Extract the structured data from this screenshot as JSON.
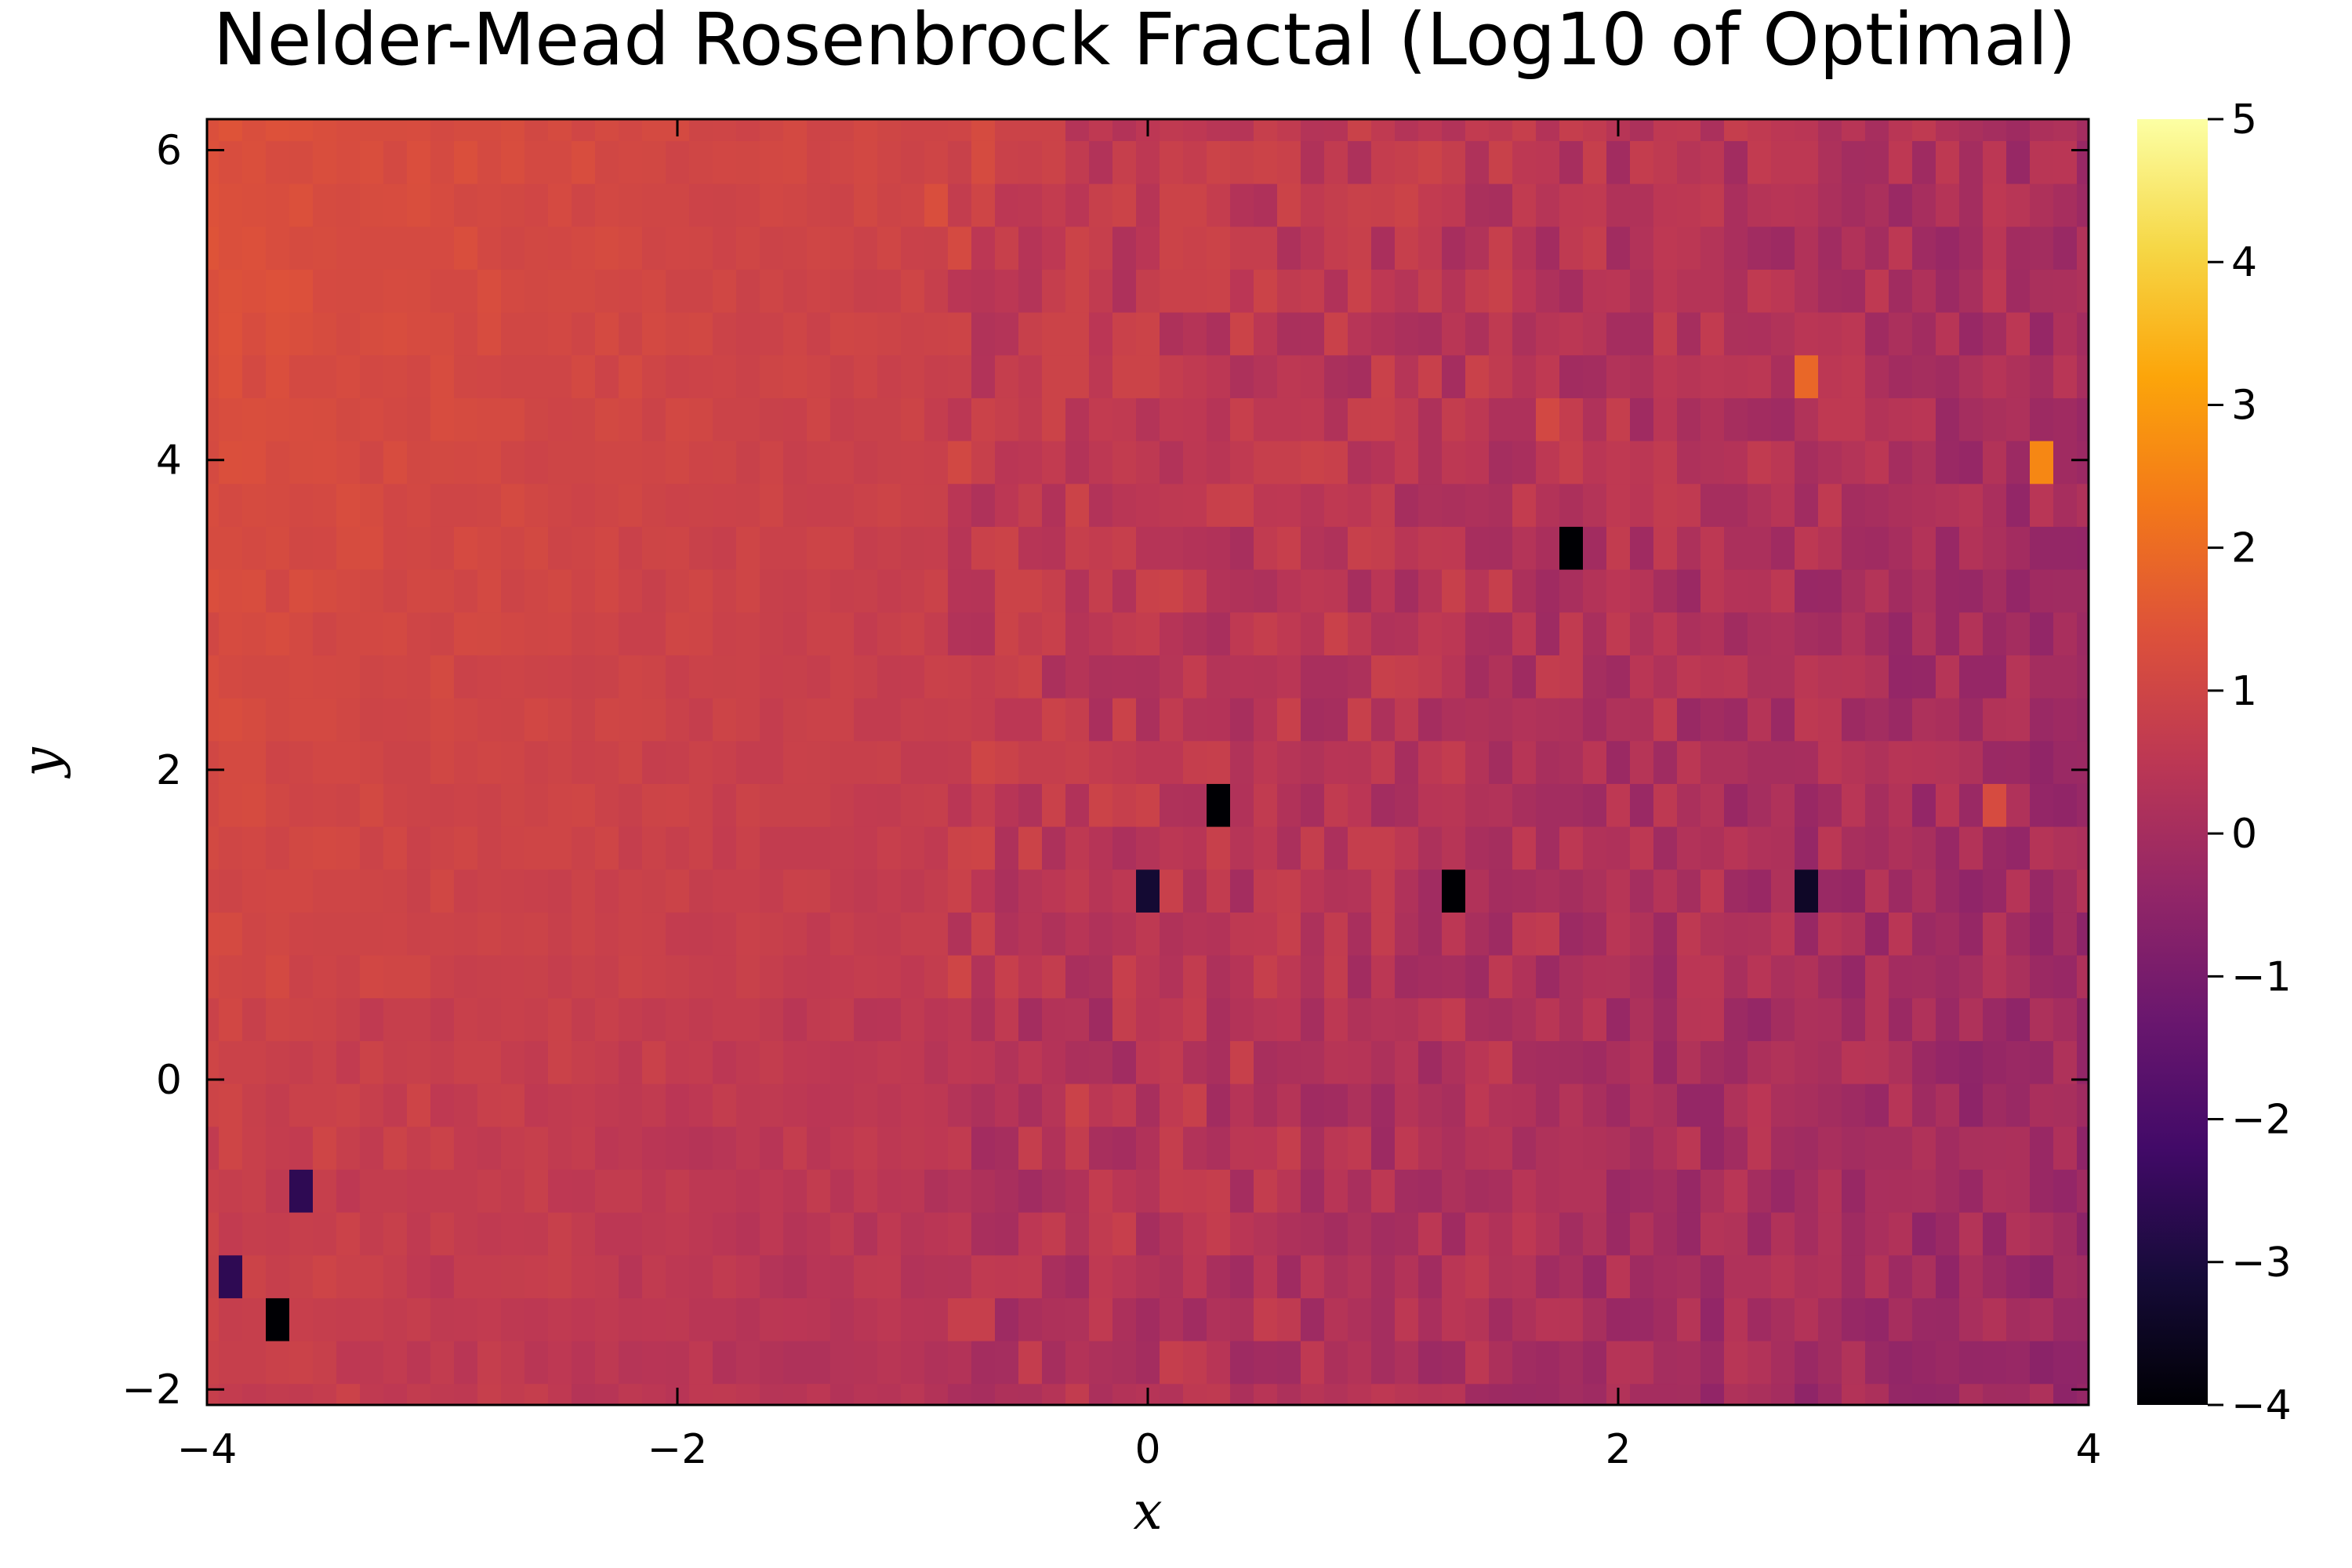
{
  "chart_data": {
    "type": "heatmap",
    "title": "Nelder-Mead Rosenbrock Fractal (Log10 of Optimal)",
    "xlabel": "x",
    "ylabel": "y",
    "xlim": [
      -4,
      4
    ],
    "ylim": [
      -2,
      6.2
    ],
    "x_ticks": [
      -4,
      -2,
      0,
      2,
      4
    ],
    "y_ticks": [
      -2,
      0,
      2,
      4,
      6
    ],
    "x_tick_labels": [
      "−4",
      "−2",
      "0",
      "2",
      "4"
    ],
    "y_tick_labels": [
      "−2",
      "0",
      "2",
      "4",
      "6"
    ],
    "colorbar": {
      "min": -4,
      "max": 5,
      "ticks": [
        -4,
        -3,
        -2,
        -1,
        0,
        1,
        2,
        3,
        4,
        5
      ],
      "tick_labels": [
        "−4",
        "−3",
        "−2",
        "−1",
        "0",
        "1",
        "2",
        "3",
        "4",
        "5"
      ],
      "colormap": "inferno"
    },
    "grid": {
      "nx": 81,
      "ny": 31,
      "x_start": -4,
      "x_end": 4,
      "y_start": -2.1,
      "y_end": 6.2
    },
    "colormap_stops": [
      [
        0.0,
        "#000004"
      ],
      [
        0.1,
        "#160b39"
      ],
      [
        0.2,
        "#420a68"
      ],
      [
        0.3,
        "#6a176e"
      ],
      [
        0.4,
        "#932667"
      ],
      [
        0.5,
        "#bc3754"
      ],
      [
        0.6,
        "#dd513a"
      ],
      [
        0.7,
        "#f37819"
      ],
      [
        0.8,
        "#fca50a"
      ],
      [
        0.9,
        "#f6d746"
      ],
      [
        1.0,
        "#fcffa4"
      ]
    ],
    "special_cells": [
      {
        "x": 0.35,
        "y": 1.75,
        "value": -4
      },
      {
        "x": 1.35,
        "y": 1.25,
        "value": -4
      },
      {
        "x": 1.75,
        "y": 3.55,
        "value": -4
      },
      {
        "x": -3.7,
        "y": -1.55,
        "value": -4
      },
      {
        "x": 2.75,
        "y": 1.25,
        "value": -3.4
      },
      {
        "x": 0.05,
        "y": 1.25,
        "value": -3.2
      },
      {
        "x": -3.6,
        "y": -0.7,
        "value": -2.6
      },
      {
        "x": -3.85,
        "y": -1.3,
        "value": -2.6
      },
      {
        "x": 3.85,
        "y": 4.1,
        "value": 2.6
      },
      {
        "x": 2.85,
        "y": 4.65,
        "value": 1.9
      },
      {
        "x": 3.55,
        "y": 1.75,
        "value": 1.2
      },
      {
        "x": -0.9,
        "y": 5.65,
        "value": 1.3
      },
      {
        "x": 1.65,
        "y": 4.4,
        "value": 1.1
      }
    ]
  }
}
